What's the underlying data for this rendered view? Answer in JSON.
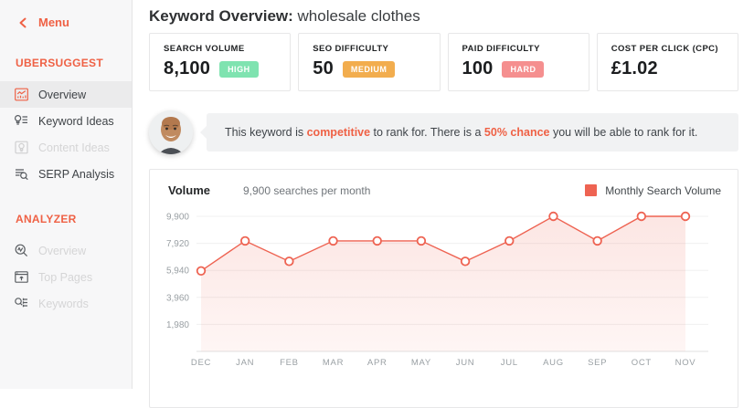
{
  "colors": {
    "accent": "#ef6145",
    "badge_green": "#7fe3b0",
    "badge_orange": "#f2ad4e",
    "badge_red": "#f58f8f",
    "chart_line": "#ee6352"
  },
  "sidebar": {
    "menu_label": "Menu",
    "sections": [
      {
        "label": "UBERSUGGEST",
        "items": [
          {
            "label": "Overview",
            "icon": "overview-chart-icon",
            "active": true,
            "disabled": false
          },
          {
            "label": "Keyword Ideas",
            "icon": "keyword-ideas-icon",
            "active": false,
            "disabled": false
          },
          {
            "label": "Content Ideas",
            "icon": "content-ideas-icon",
            "active": false,
            "disabled": true
          },
          {
            "label": "SERP Analysis",
            "icon": "serp-analysis-icon",
            "active": false,
            "disabled": false
          }
        ]
      },
      {
        "label": "ANALYZER",
        "items": [
          {
            "label": "Overview",
            "icon": "analyzer-overview-icon",
            "active": false,
            "disabled": true
          },
          {
            "label": "Top Pages",
            "icon": "top-pages-icon",
            "active": false,
            "disabled": true
          },
          {
            "label": "Keywords",
            "icon": "keywords-icon",
            "active": false,
            "disabled": true
          }
        ]
      }
    ]
  },
  "header": {
    "title": "Keyword Overview:",
    "keyword": "wholesale clothes"
  },
  "metrics": [
    {
      "label": "SEARCH VOLUME",
      "value": "8,100",
      "badge": "HIGH",
      "badge_color": "#7fe3b0"
    },
    {
      "label": "SEO DIFFICULTY",
      "value": "50",
      "badge": "MEDIUM",
      "badge_color": "#f2ad4e"
    },
    {
      "label": "PAID DIFFICULTY",
      "value": "100",
      "badge": "HARD",
      "badge_color": "#f58f8f"
    },
    {
      "label": "COST PER CLICK (CPC)",
      "value": "£1.02"
    }
  ],
  "advice": {
    "prefix": "This keyword is ",
    "highlight1": "competitive",
    "middle": " to rank for. There is a ",
    "highlight2": "50% chance",
    "suffix": " you will be able to rank for it."
  },
  "chart_data": {
    "type": "area",
    "title": "Volume",
    "subtitle": "9,900 searches per month",
    "legend": "Monthly Search Volume",
    "legend_position": "top-right",
    "categories": [
      "DEC",
      "JAN",
      "FEB",
      "MAR",
      "APR",
      "MAY",
      "JUN",
      "JUL",
      "AUG",
      "SEP",
      "OCT",
      "NOV"
    ],
    "values": [
      5900,
      8100,
      6600,
      8100,
      8100,
      8100,
      6600,
      8100,
      9900,
      8100,
      9900,
      9900
    ],
    "ytick_labels": [
      "9,900",
      "7,920",
      "5,940",
      "3,960",
      "1,980"
    ],
    "ylim": [
      0,
      9900
    ],
    "grid": true,
    "line_color": "#ee6352"
  }
}
